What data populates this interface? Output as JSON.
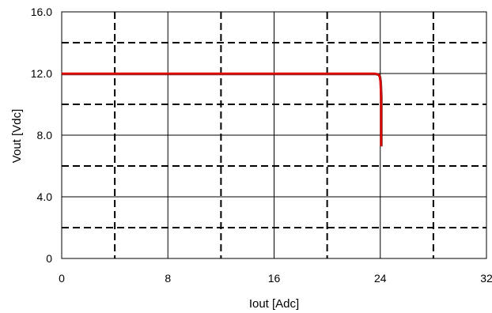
{
  "chart_data": {
    "type": "line",
    "title": "",
    "xlabel": "Iout [Adc]",
    "ylabel": "Vout [Vdc]",
    "xlim": [
      0,
      32
    ],
    "ylim": [
      0,
      16
    ],
    "x_ticks": [
      0,
      8,
      16,
      24,
      32
    ],
    "x_tick_labels": [
      "0",
      "8",
      "16",
      "24",
      "32"
    ],
    "y_ticks": [
      0,
      4,
      8,
      12,
      16
    ],
    "y_tick_labels": [
      "0",
      "4.0",
      "8.0",
      "12.0",
      "16.0"
    ],
    "major_grid": {
      "style": "solid",
      "x": [
        8,
        16,
        24
      ],
      "y": [
        4,
        8,
        12
      ]
    },
    "minor_grid": {
      "style": "dashed",
      "x": [
        4,
        12,
        20,
        28
      ],
      "y": [
        2,
        6,
        10,
        14
      ]
    },
    "grid": true,
    "legend": "none",
    "colors": {
      "series": "#e00000",
      "series_shadow": "#7a1010",
      "axis": "#000000",
      "grid": "#000000"
    },
    "series": [
      {
        "points": [
          [
            0,
            12.0
          ],
          [
            23.6,
            12.0
          ],
          [
            23.85,
            11.95
          ],
          [
            23.95,
            11.8
          ],
          [
            24.0,
            11.5
          ],
          [
            24.05,
            10.5
          ],
          [
            24.05,
            9.0
          ],
          [
            24.05,
            7.3
          ]
        ]
      }
    ]
  }
}
